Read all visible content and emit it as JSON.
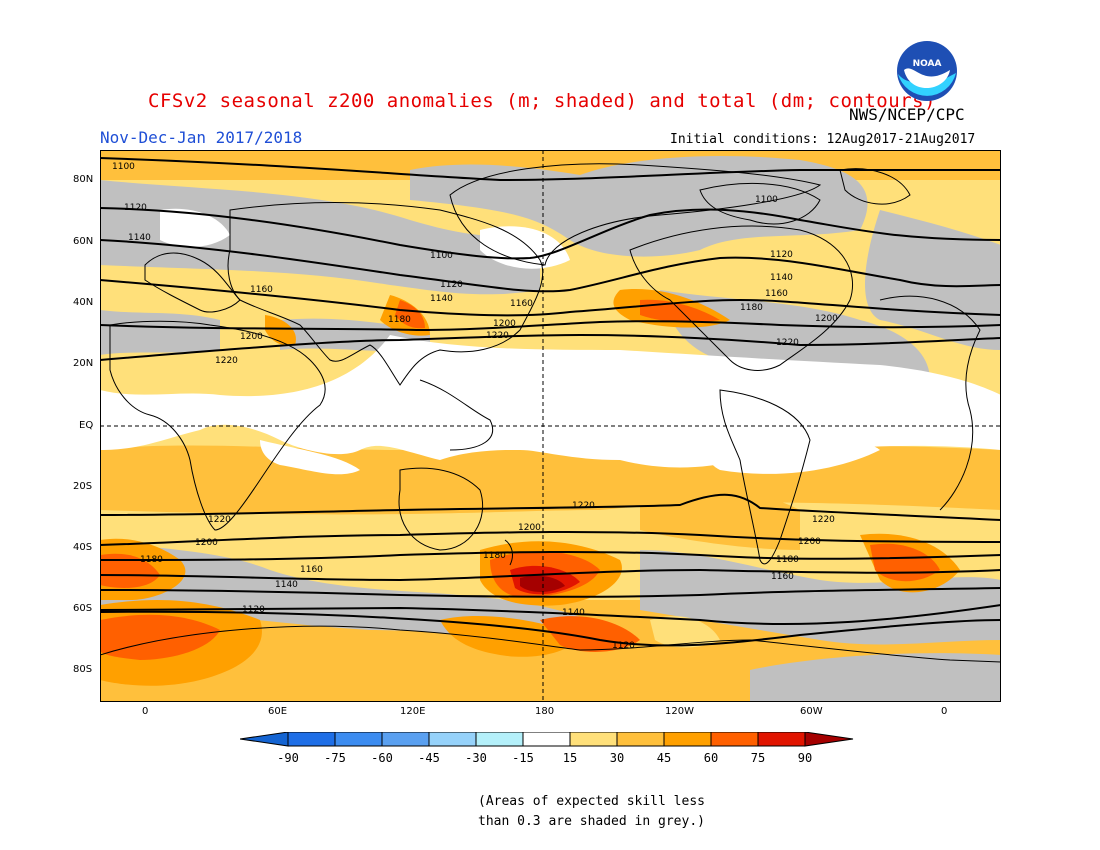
{
  "title": "CFSv2 seasonal z200 anomalies (m; shaded) and total (dm; contours)",
  "organization": "NWS/NCEP/CPC",
  "logo_text": "NOAA",
  "season": "Nov-Dec-Jan 2017/2018",
  "initial_conditions": "Initial conditions: 12Aug2017-21Aug2017",
  "lat_labels": [
    "80N",
    "60N",
    "40N",
    "20N",
    "EQ",
    "20S",
    "40S",
    "60S",
    "80S"
  ],
  "lon_labels": [
    "0",
    "60E",
    "120E",
    "180",
    "120W",
    "60W",
    "0"
  ],
  "contour_labels": [
    "1100",
    "1120",
    "1140",
    "1160",
    "1180",
    "1200",
    "1220"
  ],
  "colorbar": {
    "ticks": [
      "-90",
      "-75",
      "-60",
      "-45",
      "-30",
      "-15",
      "15",
      "30",
      "45",
      "60",
      "75",
      "90"
    ],
    "colors": [
      "#1464d2",
      "#1e6ee6",
      "#3c8cf0",
      "#5aa0f0",
      "#96d2fa",
      "#b4f0fa",
      "#ffffff",
      "#ffe07a",
      "#ffc03c",
      "#ffa000",
      "#ff6000",
      "#e11400",
      "#a50000",
      "#a50000"
    ]
  },
  "note_lines": [
    "(Areas of expected skill less",
    "than 0.3 are shaded in grey.)"
  ],
  "colors": {
    "title": "#e60000",
    "season": "#1f4fd6",
    "grey_low_skill": "#c0c0c0",
    "anom_15_30": "#ffe07a",
    "anom_30_45": "#ffc03c",
    "anom_45_60": "#ffa000",
    "anom_60_75": "#ff6000",
    "anom_75_90": "#e11400",
    "anom_gt_90": "#a50000"
  }
}
